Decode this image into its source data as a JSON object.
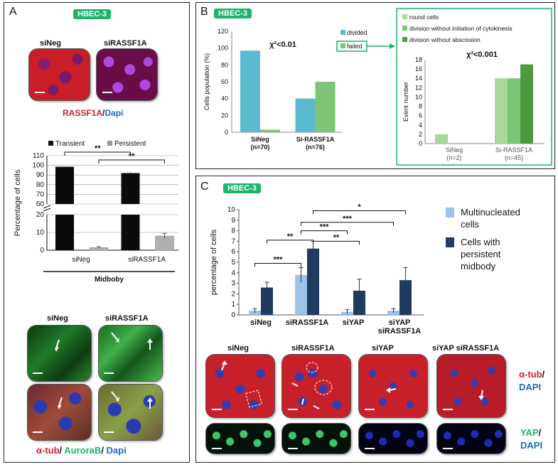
{
  "panel_a": {
    "letter": "A",
    "badge": "HBEC-3",
    "top_images": [
      "siNeg",
      "siRASSF1A"
    ],
    "stain_red": "RASSF1A",
    "stain_slash": "/",
    "stain_blue": "Dapi",
    "bottom_images": [
      "siNeg",
      "siRASSF1A"
    ],
    "bottom_stain_red": "α-tub",
    "bottom_stain_sep1": "/ ",
    "bottom_stain_green": "AuroraB",
    "bottom_stain_sep2": "/ ",
    "bottom_stain_blue": "Dapi"
  },
  "panel_b": {
    "letter": "B",
    "badge": "HBEC-3",
    "chi_main": "χ²<0.01",
    "chi_inset": "χ²<0.001"
  },
  "panel_c": {
    "letter": "C",
    "badge": "HBEC-3",
    "image_labels": [
      "siNeg",
      "siRASSF1A",
      "siYAP",
      "siYAP siRASSF1A"
    ],
    "stain1_red": "α-tub",
    "stain1_slash": "/",
    "stain1_blue": "DAPI",
    "stain2_green": "YAP",
    "stain2_slash": "/",
    "stain2_blue": "DAPI"
  },
  "colors": {
    "badge_green": "#1db46a",
    "divided_blue": "#5bbad0",
    "failed_green": "#7cc576",
    "inset_round": "#a8d89a",
    "inset_cyto": "#7cc576",
    "inset_absc": "#4f9a3e",
    "multi_light": "#9cc2e8",
    "persist_dark": "#1f3b5e"
  },
  "chart_data": [
    {
      "type": "bar",
      "id": "A-midbody",
      "categories": [
        "siNeg",
        "siRASSF1A"
      ],
      "series": [
        {
          "name": "Transient",
          "values": [
            98.5,
            92
          ],
          "errors": [
            0.5,
            1
          ]
        },
        {
          "name": "Persistent",
          "values": [
            1.5,
            8
          ],
          "errors": [
            0.5,
            1.5
          ]
        }
      ],
      "ylabel": "Percentage of cells",
      "xlabel": "Midboby",
      "axis_break": {
        "lower": [
          0,
          20
        ],
        "upper": [
          60,
          110
        ]
      },
      "yticks_lower": [
        0,
        10,
        20
      ],
      "yticks_upper": [
        60,
        70,
        80,
        90,
        100,
        110
      ],
      "significance": [
        "**",
        "**"
      ],
      "legend": "top"
    },
    {
      "type": "bar",
      "id": "B-main",
      "categories": [
        "SiNeg",
        "Si-RASSF1A"
      ],
      "category_n": [
        "(n=70)",
        "(n=76)"
      ],
      "series": [
        {
          "name": "divided",
          "values": [
            97,
            40
          ]
        },
        {
          "name": "failed",
          "values": [
            3,
            60
          ]
        }
      ],
      "ylabel": "Cells population (%)",
      "ylim": [
        0,
        120
      ],
      "yticks": [
        0,
        20,
        40,
        60,
        80,
        100,
        120
      ],
      "legend": "top-right"
    },
    {
      "type": "bar",
      "id": "B-inset",
      "categories": [
        "SiNeg",
        "Si-RASSF1A"
      ],
      "category_n": [
        "(n=2)",
        "(n=45)"
      ],
      "series": [
        {
          "name": "round cells",
          "values": [
            2,
            14
          ]
        },
        {
          "name": "division without initiation of cytokinesis",
          "values": [
            0,
            14
          ]
        },
        {
          "name": "division without abscission",
          "values": [
            0,
            17
          ]
        }
      ],
      "ylabel": "Event number",
      "ylim": [
        0,
        18
      ],
      "yticks": [
        0,
        2,
        4,
        6,
        8,
        10,
        12,
        14,
        16,
        18
      ],
      "legend": "top"
    },
    {
      "type": "bar",
      "id": "C-main",
      "categories": [
        "siNeg",
        "siRASSF1A",
        "siYAP",
        "siYAP\nsiRASSF1A"
      ],
      "series": [
        {
          "name": "Multinucleated cells",
          "values": [
            0.4,
            3.8,
            0.3,
            0.4
          ],
          "errors": [
            0.2,
            0.7,
            0.2,
            0.2
          ]
        },
        {
          "name": "Cells with persistent midbody",
          "values": [
            2.6,
            6.3,
            2.3,
            3.3
          ],
          "errors": [
            0.5,
            0.7,
            1.1,
            1.2
          ]
        }
      ],
      "ylabel": "percentage of cells",
      "ylim": [
        0,
        10
      ],
      "yticks": [
        0,
        1,
        2,
        3,
        4,
        5,
        6,
        7,
        8,
        9,
        10
      ],
      "significance": [
        "***",
        "**",
        "***",
        "**",
        "***",
        "*"
      ],
      "legend": "right"
    }
  ]
}
